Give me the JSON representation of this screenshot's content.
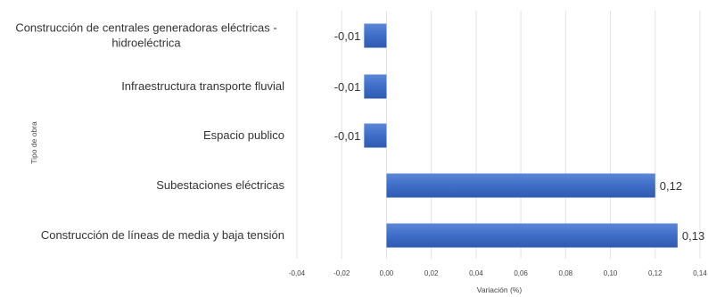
{
  "chart_data": {
    "type": "bar",
    "orientation": "horizontal",
    "categories": [
      [
        "Construcción de centrales generadoras eléctricas -",
        "hidroeléctrica"
      ],
      [
        "Infraestructura transporte fluvial"
      ],
      [
        "Espacio publico"
      ],
      [
        "Subestaciones eléctricas"
      ],
      [
        "Construcción de líneas de media y baja tensión"
      ]
    ],
    "values": [
      -0.01,
      -0.01,
      -0.01,
      0.12,
      0.13
    ],
    "data_labels": [
      "-0,01",
      "-0,01",
      "-0,01",
      "0,12",
      "0,13"
    ],
    "xlabel": "Variación (%)",
    "ylabel": "Tipo de obra",
    "xlim": [
      -0.04,
      0.14
    ],
    "xticks": [
      -0.04,
      -0.02,
      0.0,
      0.02,
      0.04,
      0.06,
      0.08,
      0.1,
      0.12,
      0.14
    ],
    "xtick_labels": [
      "-0,04",
      "-0,02",
      "0,00",
      "0,02",
      "0,04",
      "0,06",
      "0,08",
      "0,10",
      "0,12",
      "0,14"
    ],
    "grid": "vertical",
    "legend": "none",
    "bar_color": "#3f6ec8"
  }
}
